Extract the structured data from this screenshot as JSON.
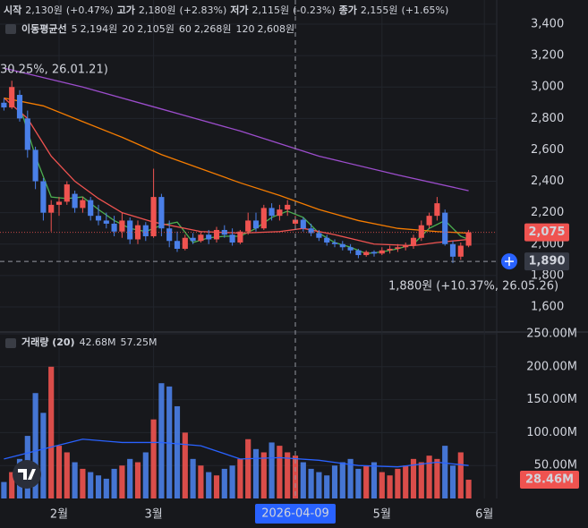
{
  "chart_data": {
    "type": "candlestick",
    "info": [
      "시작",
      "2,130원",
      "(+0.47%)",
      "고가",
      "2,180원",
      "(+2.83%)",
      "저가",
      "2,115원",
      "(-0.23%)",
      "종가",
      "2,155원",
      "(+1.65%)"
    ],
    "ma_title": "이동평균선",
    "ma_series": [
      {
        "name": "5",
        "value_label": "2,194원",
        "color": "#4caf50",
        "x": [
          2,
          4,
          6,
          8,
          10,
          12,
          14,
          16,
          18,
          20,
          22,
          24,
          26,
          28,
          30,
          32,
          34,
          36,
          38,
          40,
          42,
          44,
          46,
          48,
          50,
          52,
          54,
          56,
          58,
          59
        ],
        "values": [
          2880,
          2560,
          2300,
          2290,
          2300,
          2220,
          2150,
          2100,
          2080,
          2120,
          2140,
          2010,
          2040,
          2050,
          2050,
          2100,
          2170,
          2210,
          2170,
          2070,
          2010,
          1980,
          1940,
          1950,
          1970,
          2000,
          2100,
          2150,
          2050,
          2030
        ]
      },
      {
        "name": "20",
        "value_label": "2,105원",
        "color": "#ef5350",
        "x": [
          0,
          3,
          6,
          9,
          12,
          15,
          19,
          25,
          30,
          35,
          38,
          42,
          47,
          52,
          55,
          59
        ],
        "values": [
          2930,
          2800,
          2560,
          2400,
          2290,
          2200,
          2140,
          2080,
          2070,
          2080,
          2100,
          2060,
          2000,
          1990,
          2010,
          2030
        ]
      },
      {
        "name": "60",
        "value_label": "2,268원",
        "color": "#f57c00",
        "x": [
          0,
          5,
          10,
          15,
          20,
          25,
          30,
          35,
          40,
          45,
          50,
          55,
          59
        ],
        "values": [
          2930,
          2880,
          2780,
          2680,
          2570,
          2480,
          2390,
          2310,
          2220,
          2150,
          2100,
          2080,
          2070
        ]
      },
      {
        "name": "120",
        "value_label": "2,608원",
        "color": "#9c4dcc",
        "x": [
          0,
          10,
          20,
          30,
          40,
          50,
          59
        ],
        "values": [
          3120,
          3000,
          2860,
          2720,
          2560,
          2440,
          2340
        ]
      }
    ],
    "volume_title": "거래량 (20)",
    "volume_labels": [
      "42.68M",
      "57.25M"
    ],
    "candles": [
      [
        2900,
        2930,
        2850,
        2870
      ],
      [
        2870,
        3040,
        2860,
        3000
      ],
      [
        2950,
        2980,
        2780,
        2800
      ],
      [
        2800,
        2850,
        2550,
        2600
      ],
      [
        2600,
        2620,
        2350,
        2400
      ],
      [
        2400,
        2420,
        2150,
        2200
      ],
      [
        2200,
        2280,
        2080,
        2250
      ],
      [
        2250,
        2300,
        2180,
        2270
      ],
      [
        2270,
        2400,
        2250,
        2380
      ],
      [
        2320,
        2340,
        2200,
        2230
      ],
      [
        2230,
        2300,
        2200,
        2280
      ],
      [
        2280,
        2300,
        2150,
        2180
      ],
      [
        2180,
        2250,
        2120,
        2150
      ],
      [
        2150,
        2200,
        2100,
        2130
      ],
      [
        2130,
        2180,
        2050,
        2080
      ],
      [
        2080,
        2200,
        2040,
        2150
      ],
      [
        2150,
        2170,
        2000,
        2030
      ],
      [
        2030,
        2150,
        2000,
        2120
      ],
      [
        2120,
        2140,
        2020,
        2050
      ],
      [
        2050,
        2480,
        2040,
        2300
      ],
      [
        2300,
        2320,
        2050,
        2100
      ],
      [
        2100,
        2150,
        1980,
        2020
      ],
      [
        2020,
        2080,
        1950,
        1970
      ],
      [
        1970,
        2060,
        1960,
        2040
      ],
      [
        2040,
        2070,
        2000,
        2020
      ],
      [
        2020,
        2080,
        2010,
        2060
      ],
      [
        2060,
        2090,
        2000,
        2030
      ],
      [
        2030,
        2110,
        2010,
        2090
      ],
      [
        2090,
        2120,
        2040,
        2060
      ],
      [
        2060,
        2100,
        1990,
        2010
      ],
      [
        2010,
        2090,
        2000,
        2080
      ],
      [
        2080,
        2200,
        2060,
        2150
      ],
      [
        2150,
        2200,
        2080,
        2100
      ],
      [
        2100,
        2250,
        2090,
        2230
      ],
      [
        2230,
        2260,
        2150,
        2180
      ],
      [
        2180,
        2250,
        2150,
        2220
      ],
      [
        2220,
        2280,
        2180,
        2250
      ],
      [
        2130,
        2180,
        2115,
        2155
      ],
      [
        2155,
        2170,
        2080,
        2100
      ],
      [
        2100,
        2130,
        2050,
        2070
      ],
      [
        2070,
        2090,
        2020,
        2040
      ],
      [
        2040,
        2060,
        1990,
        2010
      ],
      [
        2010,
        2030,
        1980,
        2000
      ],
      [
        2000,
        2020,
        1960,
        1980
      ],
      [
        1980,
        2000,
        1940,
        1960
      ],
      [
        1960,
        1970,
        1910,
        1930
      ],
      [
        1930,
        1960,
        1920,
        1950
      ],
      [
        1950,
        1960,
        1920,
        1940
      ],
      [
        1940,
        1980,
        1930,
        1960
      ],
      [
        1960,
        1990,
        1940,
        1970
      ],
      [
        1970,
        2000,
        1950,
        1980
      ],
      [
        1980,
        2010,
        1960,
        1990
      ],
      [
        1990,
        2060,
        1970,
        2040
      ],
      [
        2040,
        2150,
        2020,
        2120
      ],
      [
        2120,
        2200,
        2100,
        2180
      ],
      [
        2180,
        2300,
        2150,
        2260
      ],
      [
        2200,
        2220,
        1990,
        2000
      ],
      [
        2000,
        2020,
        1880,
        1920
      ],
      [
        1920,
        2010,
        1900,
        1990
      ],
      [
        1990,
        2090,
        1980,
        2075
      ]
    ],
    "volume": [
      25000000,
      40000000,
      60000000,
      95000000,
      160000000,
      130000000,
      200000000,
      80000000,
      70000000,
      55000000,
      45000000,
      40000000,
      35000000,
      30000000,
      45000000,
      50000000,
      60000000,
      55000000,
      70000000,
      120000000,
      175000000,
      170000000,
      140000000,
      100000000,
      60000000,
      50000000,
      40000000,
      35000000,
      45000000,
      50000000,
      60000000,
      90000000,
      75000000,
      70000000,
      85000000,
      80000000,
      70000000,
      65000000,
      55000000,
      45000000,
      40000000,
      35000000,
      50000000,
      55000000,
      60000000,
      45000000,
      50000000,
      55000000,
      40000000,
      35000000,
      45000000,
      50000000,
      60000000,
      55000000,
      65000000,
      60000000,
      80000000,
      50000000,
      70000000,
      28460000
    ],
    "volume_ma": {
      "color": "#2962ff",
      "x": [
        0,
        5,
        10,
        15,
        20,
        25,
        30,
        35,
        40,
        45,
        50,
        55,
        59
      ],
      "values": [
        60000000,
        75000000,
        90000000,
        85000000,
        85000000,
        80000000,
        60000000,
        62000000,
        58000000,
        50000000,
        48000000,
        55000000,
        50000000
      ]
    },
    "up_color": "#ef5350",
    "down_color": "#4a7fe8",
    "xlim": [
      -0.5,
      59.5
    ],
    "xticks": [
      {
        "value": 7,
        "label": "2월"
      },
      {
        "value": 19,
        "label": "3월"
      },
      {
        "value": 48,
        "label": "5월"
      },
      {
        "value": 61,
        "label": "6월"
      }
    ],
    "ylim": [
      1446,
      3554
    ],
    "yticks": [
      {
        "value": 1600,
        "label": "1,600"
      },
      {
        "value": 1800,
        "label": "1,800"
      },
      {
        "value": 2000,
        "label": "2,000"
      },
      {
        "value": 2200,
        "label": "2,200"
      },
      {
        "value": 2400,
        "label": "2,400"
      },
      {
        "value": 2600,
        "label": "2,600"
      },
      {
        "value": 2800,
        "label": "2,800"
      },
      {
        "value": 3000,
        "label": "3,000"
      },
      {
        "value": 3200,
        "label": "3,200"
      },
      {
        "value": 3400,
        "label": "3,400"
      }
    ],
    "y2lim": [
      0,
      250000000
    ],
    "y2ticks": [
      {
        "value": 50000000,
        "label": "50.00M"
      },
      {
        "value": 100000000,
        "label": "100.00M"
      },
      {
        "value": 150000000,
        "label": "150.00M"
      },
      {
        "value": 200000000,
        "label": "200.00M"
      },
      {
        "value": 250000000,
        "label": "250.00M"
      }
    ],
    "last_price": {
      "value": 2075,
      "label": "2,075"
    },
    "crosshair_price": {
      "value": 1890,
      "label": "1,890"
    },
    "crosshair_x": {
      "value": 37,
      "label": "2026-04-09"
    },
    "last_volume": {
      "value": 28460000,
      "label": "28.46M"
    },
    "high_note": "30.25%, 26.01.21)",
    "low_note": "1,880원 (+10.37%, 26.05.26)",
    "grid": true
  }
}
